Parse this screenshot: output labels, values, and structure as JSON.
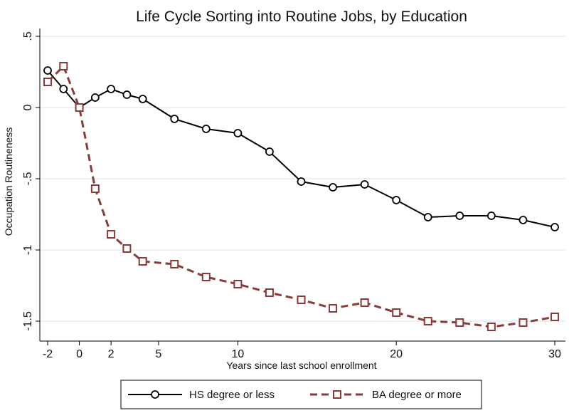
{
  "chart_data": {
    "type": "line",
    "title": "Life Cycle Sorting into Routine Jobs, by Education",
    "xlabel": "Years since last school enrollment",
    "ylabel": "Occupation Routineness",
    "xlim": [
      -2,
      30
    ],
    "ylim": [
      -1.6,
      0.5
    ],
    "xticks": [
      -2,
      0,
      2,
      5,
      10,
      20,
      30
    ],
    "xtick_labels": [
      "-2",
      "0",
      "2",
      "5",
      "10",
      "20",
      "30"
    ],
    "yticks": [
      0.5,
      0,
      -0.5,
      -1,
      -1.5
    ],
    "ytick_labels": [
      ".5",
      "0",
      "-.5",
      "-1",
      "-1.5"
    ],
    "grid": true,
    "legend_position": "bottom",
    "series": [
      {
        "name": "HS degree or less",
        "color": "#000000",
        "line_style": "solid",
        "marker": "circle",
        "x": [
          -2,
          -1,
          0,
          1,
          2,
          3,
          4,
          6,
          8,
          10,
          12,
          14,
          16,
          18,
          20,
          22,
          24,
          26,
          28,
          30
        ],
        "y": [
          0.26,
          0.13,
          0.0,
          0.07,
          0.13,
          0.09,
          0.06,
          -0.08,
          -0.15,
          -0.18,
          -0.31,
          -0.52,
          -0.56,
          -0.54,
          -0.65,
          -0.77,
          -0.76,
          -0.76,
          -0.79,
          -0.84
        ]
      },
      {
        "name": "BA degree or more",
        "color": "#8b3a3a",
        "line_style": "dashed",
        "marker": "square",
        "x": [
          -2,
          -1,
          0,
          1,
          2,
          3,
          4,
          6,
          8,
          10,
          12,
          14,
          16,
          18,
          20,
          22,
          24,
          26,
          28,
          30
        ],
        "y": [
          0.18,
          0.29,
          0.0,
          -0.57,
          -0.89,
          -0.99,
          -1.08,
          -1.1,
          -1.19,
          -1.24,
          -1.3,
          -1.35,
          -1.41,
          -1.37,
          -1.44,
          -1.5,
          -1.51,
          -1.54,
          -1.51,
          -1.47
        ]
      }
    ]
  }
}
